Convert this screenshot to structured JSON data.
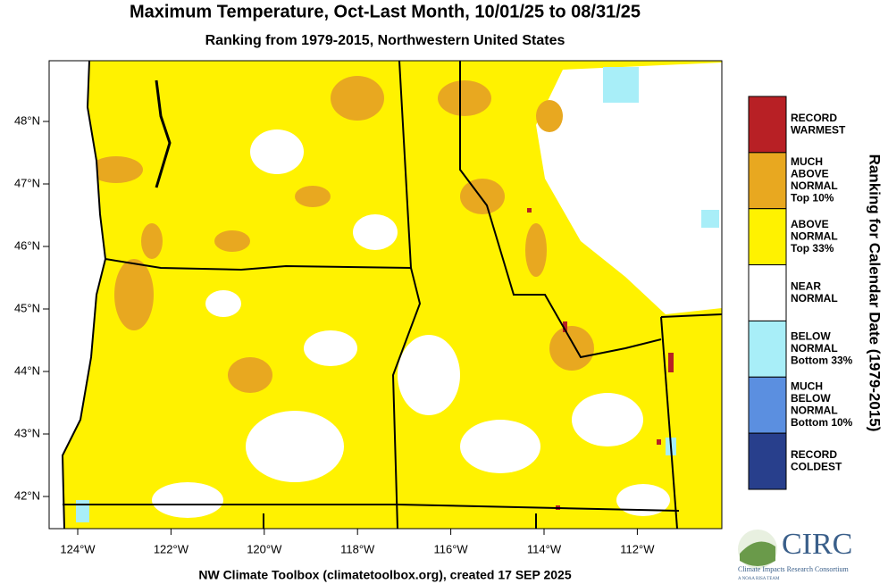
{
  "title": "Maximum Temperature, Oct-Last Month, 10/01/25 to 08/31/25",
  "subtitle": "Ranking from 1979-2015, Northwestern United States",
  "map": {
    "lat_labels": [
      "48°N",
      "47°N",
      "46°N",
      "45°N",
      "44°N",
      "43°N",
      "42°N"
    ],
    "lon_labels": [
      "124°W",
      "122°W",
      "120°W",
      "118°W",
      "116°W",
      "114°W",
      "112°W"
    ]
  },
  "legend": {
    "title": "Ranking for Calendar Date (1979-2015)",
    "items": [
      {
        "label": [
          "RECORD",
          "WARMEST"
        ],
        "color": "#b82025"
      },
      {
        "label": [
          "MUCH",
          "ABOVE",
          "NORMAL",
          "Top 10%"
        ],
        "color": "#e8a820"
      },
      {
        "label": [
          "ABOVE",
          "NORMAL",
          "Top 33%"
        ],
        "color": "#fff200"
      },
      {
        "label": [
          "NEAR",
          "NORMAL"
        ],
        "color": "#ffffff"
      },
      {
        "label": [
          "BELOW",
          "NORMAL",
          "Bottom 33%"
        ],
        "color": "#a8eef8"
      },
      {
        "label": [
          "MUCH",
          "BELOW",
          "NORMAL",
          "Bottom 10%"
        ],
        "color": "#5b8fe0"
      },
      {
        "label": [
          "RECORD",
          "COLDEST"
        ],
        "color": "#283f8c"
      }
    ]
  },
  "footer": "NW Climate Toolbox (climatetoolbox.org), created 17 SEP 2025",
  "logo": {
    "name": "CIRC",
    "subtitle": "Climate Impacts Research Consortium",
    "tagline": "A NOAA RISA TEAM"
  }
}
